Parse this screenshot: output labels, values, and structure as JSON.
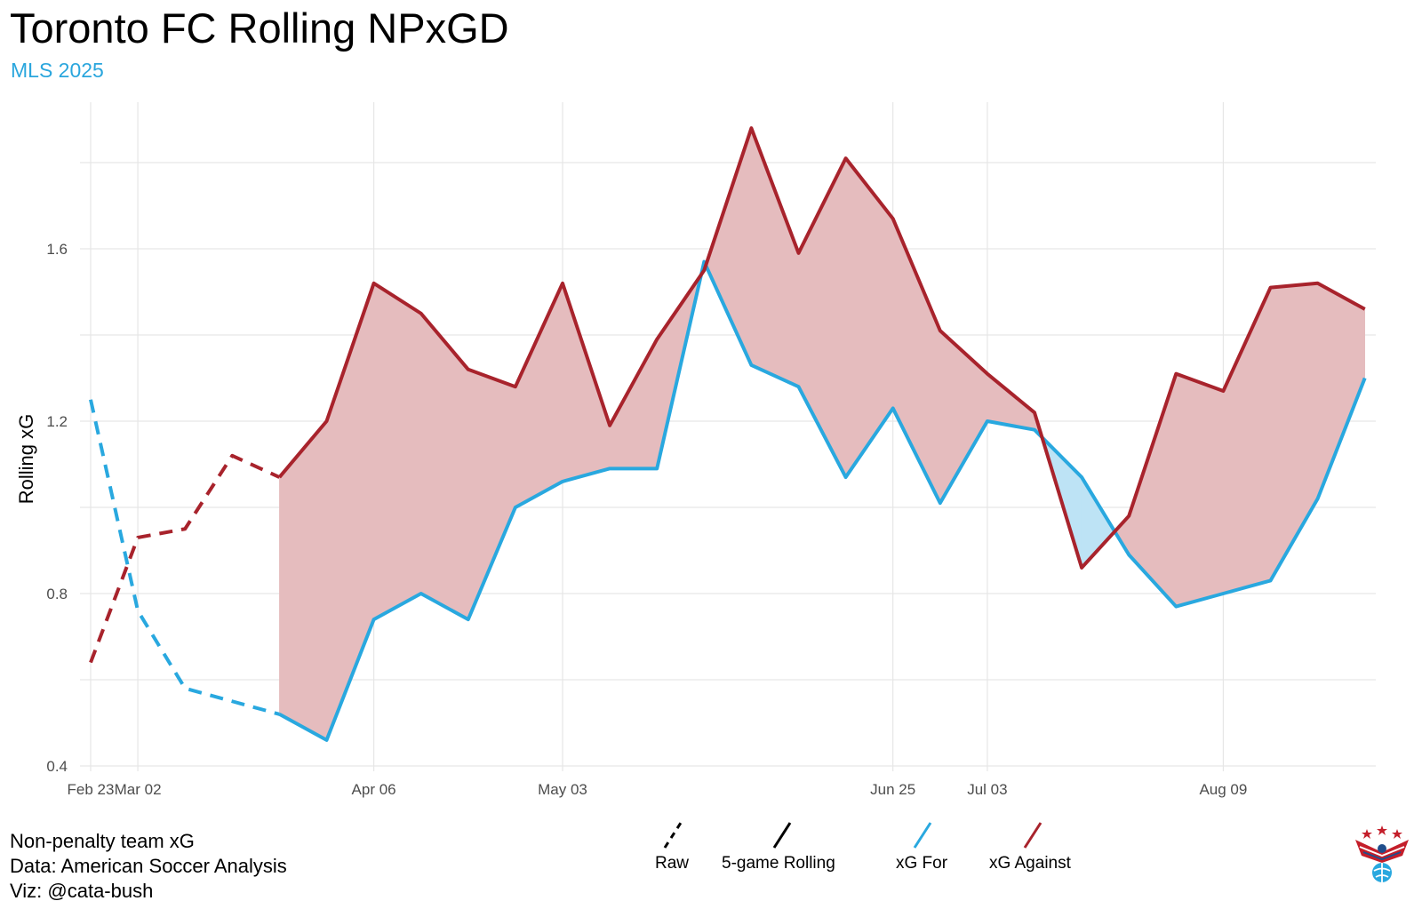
{
  "title": "Toronto FC Rolling NPxGD",
  "subtitle": "MLS 2025",
  "caption": {
    "line1": "Non-penalty team xG",
    "line2": "Data: American Soccer Analysis",
    "line3": "Viz: @cata-bush"
  },
  "legend": {
    "raw": "Raw",
    "rolling": "5-game Rolling",
    "xg_for": "xG For",
    "xg_against": "xG Against"
  },
  "colors": {
    "xg_for": "#29a8df",
    "xg_against": "#a8232c",
    "against_fill": "#e5bcbe",
    "for_fill": "#bde3f5",
    "grid": "#e6e6e6"
  },
  "logo_icon": "eagle-soccer-logo-icon",
  "chart_data": {
    "type": "line",
    "ylabel": "Rolling xG",
    "ylim": [
      0.4,
      1.88
    ],
    "yticks": [
      0.4,
      0.8,
      1.2,
      1.6
    ],
    "x_ticks": [
      {
        "game": 0,
        "label": "Feb 23"
      },
      {
        "game": 1,
        "label": "Mar 02"
      },
      {
        "game": 6,
        "label": "Apr 06"
      },
      {
        "game": 10,
        "label": "May 03"
      },
      {
        "game": 17,
        "label": "Jun 25"
      },
      {
        "game": 19,
        "label": "Jul 03"
      },
      {
        "game": 24,
        "label": "Aug 09"
      }
    ],
    "raw_games": 5,
    "series": [
      {
        "name": "xG For",
        "values": [
          1.25,
          0.76,
          0.58,
          0.55,
          0.52,
          0.46,
          0.74,
          0.8,
          0.74,
          1.0,
          1.06,
          1.09,
          1.09,
          1.57,
          1.33,
          1.28,
          1.07,
          1.23,
          1.01,
          1.2,
          1.18,
          1.07,
          0.89,
          0.77,
          0.8,
          0.83,
          1.02,
          1.3
        ]
      },
      {
        "name": "xG Against",
        "values": [
          0.64,
          0.93,
          0.95,
          1.12,
          1.07,
          1.2,
          1.52,
          1.45,
          1.32,
          1.28,
          1.52,
          1.19,
          1.39,
          1.55,
          1.88,
          1.59,
          1.81,
          1.67,
          1.41,
          1.31,
          1.22,
          0.86,
          0.98,
          1.31,
          1.27,
          1.51,
          1.52,
          1.46
        ]
      }
    ]
  }
}
